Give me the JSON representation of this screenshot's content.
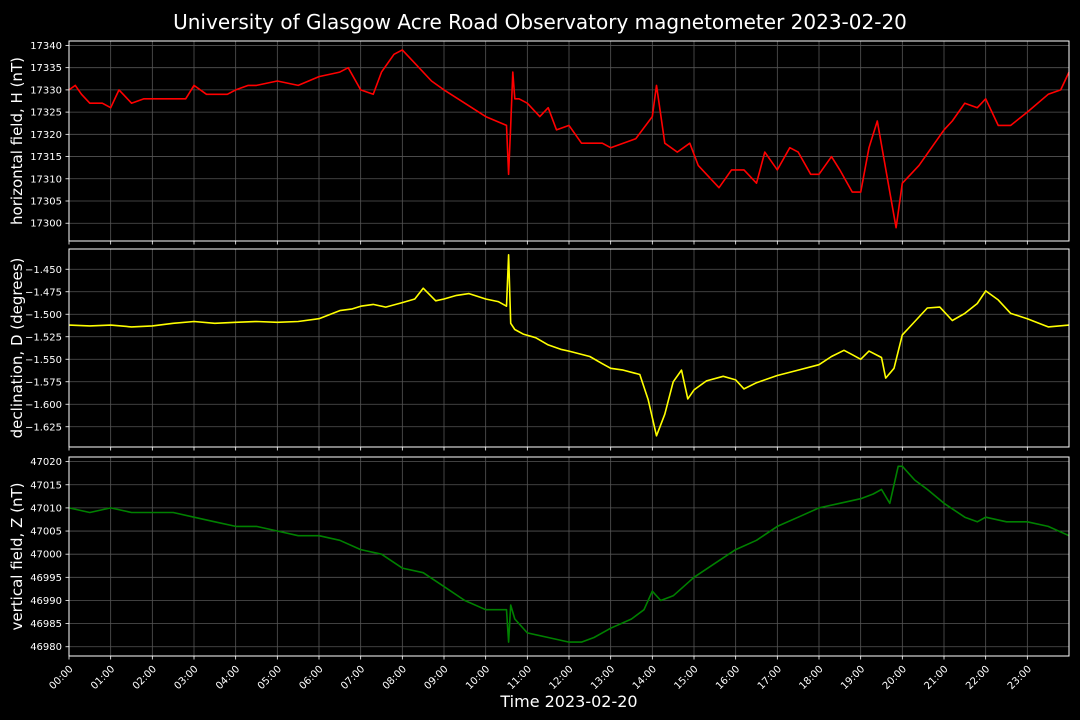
{
  "figure": {
    "title": "University of Glasgow Acre Road Observatory magnetometer 2023-02-20",
    "xlabel": "Time 2023-02-20",
    "background": "#000000",
    "grid_color": "#555555",
    "frame_color": "#ffffff"
  },
  "chart_data": [
    {
      "type": "line",
      "panel": "top",
      "ylabel": "horizontal field, H (nT)",
      "ylim": [
        17296,
        17341
      ],
      "yticks": [
        "17300",
        "17305",
        "17310",
        "17315",
        "17320",
        "17325",
        "17330",
        "17335",
        "17340"
      ],
      "xticks": [
        "00:00",
        "01:00",
        "02:00",
        "03:00",
        "04:00",
        "05:00",
        "06:00",
        "07:00",
        "08:00",
        "09:00",
        "10:00",
        "11:00",
        "12:00",
        "13:00",
        "14:00",
        "15:00",
        "16:00",
        "17:00",
        "18:00",
        "19:00",
        "20:00",
        "21:00",
        "22:00",
        "23:00"
      ],
      "xlim_hours": [
        0,
        24
      ],
      "grid": true,
      "series": [
        {
          "color": "#ff0000",
          "x": [
            0,
            0.15,
            0.3,
            0.5,
            0.8,
            1.0,
            1.2,
            1.3,
            1.5,
            1.8,
            2.0,
            2.3,
            2.8,
            3.0,
            3.3,
            3.8,
            4.0,
            4.3,
            4.5,
            5.0,
            5.5,
            6.0,
            6.5,
            6.7,
            7.0,
            7.3,
            7.5,
            7.8,
            8.0,
            8.3,
            8.7,
            9.0,
            9.5,
            10.0,
            10.5,
            10.55,
            10.6,
            10.65,
            10.7,
            10.8,
            11.0,
            11.3,
            11.5,
            11.7,
            12.0,
            12.3,
            12.5,
            12.8,
            13.0,
            13.3,
            13.6,
            14.0,
            14.1,
            14.3,
            14.6,
            14.9,
            15.1,
            15.3,
            15.6,
            15.9,
            16.2,
            16.5,
            16.7,
            17.0,
            17.3,
            17.5,
            17.8,
            18.0,
            18.3,
            18.5,
            18.8,
            19.0,
            19.2,
            19.4,
            19.7,
            19.85,
            20.0,
            20.2,
            20.4,
            20.7,
            21.0,
            21.2,
            21.5,
            21.8,
            22.0,
            22.3,
            22.6,
            23.0,
            23.5,
            23.8,
            24.0
          ],
          "values": [
            17330,
            17331,
            17329,
            17327,
            17327,
            17326,
            17330,
            17329,
            17327,
            17328,
            17328,
            17328,
            17328,
            17331,
            17329,
            17329,
            17330,
            17331,
            17331,
            17332,
            17331,
            17333,
            17334,
            17335,
            17330,
            17329,
            17334,
            17338,
            17339,
            17336,
            17332,
            17330,
            17327,
            17324,
            17322,
            17311,
            17322,
            17334,
            17328,
            17328,
            17327,
            17324,
            17326,
            17321,
            17322,
            17318,
            17318,
            17318,
            17317,
            17318,
            17319,
            17324,
            17331,
            17318,
            17316,
            17318,
            17313,
            17311,
            17308,
            17312,
            17312,
            17309,
            17316,
            17312,
            17317,
            17316,
            17311,
            17311,
            17315,
            17312,
            17307,
            17307,
            17317,
            17323,
            17307,
            17299,
            17309,
            17311,
            17313,
            17317,
            17321,
            17323,
            17327,
            17326,
            17328,
            17322,
            17322,
            17325,
            17329,
            17330,
            17334
          ]
        }
      ]
    },
    {
      "type": "line",
      "panel": "middle",
      "ylabel": "declination, D (degrees)",
      "ylim": [
        -1.6475,
        -1.4275
      ],
      "yticks": [
        "−1.625",
        "−1.600",
        "−1.575",
        "−1.550",
        "−1.525",
        "−1.500",
        "−1.475",
        "−1.450"
      ],
      "xlim_hours": [
        0,
        24
      ],
      "grid": true,
      "series": [
        {
          "color": "#ffff00",
          "x": [
            0,
            0.5,
            1.0,
            1.5,
            2.0,
            2.5,
            3.0,
            3.5,
            4.0,
            4.5,
            5.0,
            5.5,
            6.0,
            6.5,
            6.8,
            7.0,
            7.3,
            7.6,
            8.0,
            8.3,
            8.5,
            8.8,
            9.0,
            9.3,
            9.6,
            10.0,
            10.3,
            10.5,
            10.55,
            10.6,
            10.7,
            10.9,
            11.2,
            11.5,
            11.8,
            12.0,
            12.5,
            12.8,
            13.0,
            13.3,
            13.7,
            13.9,
            14.1,
            14.3,
            14.5,
            14.7,
            14.85,
            15.0,
            15.3,
            15.7,
            16.0,
            16.2,
            16.5,
            17.0,
            17.5,
            18.0,
            18.3,
            18.6,
            18.8,
            19.0,
            19.2,
            19.5,
            19.6,
            19.8,
            20.0,
            20.3,
            20.6,
            20.9,
            21.2,
            21.5,
            21.8,
            22.0,
            22.3,
            22.6,
            23.0,
            23.5,
            24.0
          ],
          "values": [
            -1.512,
            -1.513,
            -1.512,
            -1.514,
            -1.513,
            -1.51,
            -1.508,
            -1.51,
            -1.509,
            -1.508,
            -1.509,
            -1.508,
            -1.505,
            -1.496,
            -1.494,
            -1.491,
            -1.489,
            -1.492,
            -1.487,
            -1.483,
            -1.471,
            -1.485,
            -1.483,
            -1.479,
            -1.477,
            -1.483,
            -1.486,
            -1.491,
            -1.434,
            -1.51,
            -1.517,
            -1.522,
            -1.526,
            -1.534,
            -1.539,
            -1.541,
            -1.547,
            -1.555,
            -1.56,
            -1.562,
            -1.567,
            -1.595,
            -1.635,
            -1.611,
            -1.575,
            -1.562,
            -1.594,
            -1.584,
            -1.574,
            -1.569,
            -1.573,
            -1.583,
            -1.576,
            -1.568,
            -1.562,
            -1.556,
            -1.547,
            -1.54,
            -1.545,
            -1.55,
            -1.541,
            -1.548,
            -1.571,
            -1.56,
            -1.523,
            -1.508,
            -1.493,
            -1.492,
            -1.507,
            -1.499,
            -1.488,
            -1.474,
            -1.484,
            -1.499,
            -1.505,
            -1.514,
            -1.512
          ]
        }
      ]
    },
    {
      "type": "line",
      "panel": "bottom",
      "ylabel": "vertical field, Z (nT)",
      "ylim": [
        46978,
        47021
      ],
      "yticks": [
        "46980",
        "46985",
        "46990",
        "46995",
        "47000",
        "47005",
        "47010",
        "47015",
        "47020"
      ],
      "xlim_hours": [
        0,
        24
      ],
      "grid": true,
      "series": [
        {
          "color": "#008000",
          "x": [
            0,
            0.5,
            1.0,
            1.5,
            2.0,
            2.5,
            3.0,
            3.5,
            4.0,
            4.5,
            5.0,
            5.5,
            6.0,
            6.5,
            7.0,
            7.5,
            8.0,
            8.5,
            9.0,
            9.5,
            10.0,
            10.5,
            10.55,
            10.6,
            10.7,
            11.0,
            11.5,
            12.0,
            12.3,
            12.6,
            13.0,
            13.5,
            13.8,
            14.0,
            14.2,
            14.5,
            15.0,
            15.5,
            16.0,
            16.5,
            17.0,
            17.5,
            18.0,
            18.5,
            19.0,
            19.3,
            19.5,
            19.7,
            19.9,
            20.0,
            20.3,
            20.6,
            21.0,
            21.5,
            21.8,
            22.0,
            22.5,
            23.0,
            23.5,
            24.0
          ],
          "values": [
            47010,
            47009,
            47010,
            47009,
            47009,
            47009,
            47008,
            47007,
            47006,
            47006,
            47005,
            47004,
            47004,
            47003,
            47001,
            47000,
            46997,
            46996,
            46993,
            46990,
            46988,
            46988,
            46981,
            46989,
            46986,
            46983,
            46982,
            46981,
            46981,
            46982,
            46984,
            46986,
            46988,
            46992,
            46990,
            46991,
            46995,
            46998,
            47001,
            47003,
            47006,
            47008,
            47010,
            47011,
            47012,
            47013,
            47014,
            47011,
            47019,
            47019,
            47016,
            47014,
            47011,
            47008,
            47007,
            47008,
            47007,
            47007,
            47006,
            47004
          ]
        }
      ]
    }
  ]
}
